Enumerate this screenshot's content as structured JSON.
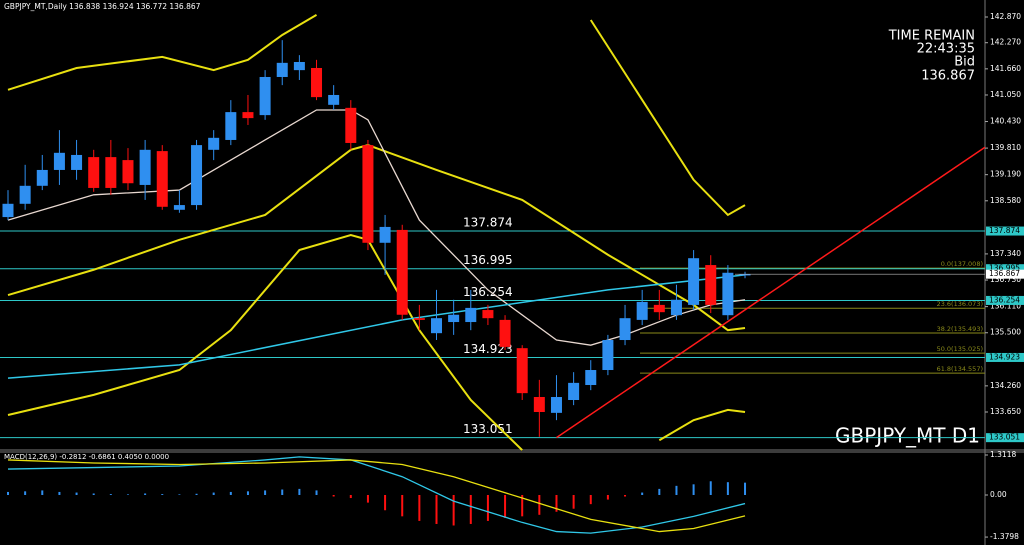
{
  "chart_data": {
    "type": "candlestick",
    "header": "GBPJPY_MT,Daily 136.838 136.924 136.772 136.867",
    "symbol_label": "GBPJPY_MT D1",
    "time_remain": {
      "title": "TIME REMAIN",
      "time": "22:43:35",
      "bid_label": "Bid",
      "bid": 136.867
    },
    "up_color": "#2f8ff0",
    "down_color": "#ff1010",
    "open": [
      138.2,
      138.51,
      138.93,
      139.3,
      139.3,
      139.6,
      139.6,
      139.53,
      138.95,
      139.74,
      138.37,
      138.48,
      139.77,
      140.0,
      140.65,
      140.58,
      141.47,
      141.63,
      141.68,
      140.82,
      140.75,
      139.88,
      137.6,
      137.9,
      135.84,
      135.49,
      135.75,
      135.75,
      136.03,
      135.8,
      135.14,
      134.0,
      133.63,
      133.93,
      134.28,
      134.63,
      135.33,
      135.8,
      136.15,
      135.91,
      136.15,
      137.08,
      135.91,
      136.838
    ],
    "high": [
      138.83,
      139.42,
      139.65,
      140.23,
      140.0,
      139.77,
      140.0,
      139.81,
      140.0,
      139.88,
      138.83,
      140.0,
      140.23,
      140.93,
      141.05,
      141.63,
      142.33,
      141.98,
      141.87,
      141.28,
      140.93,
      140.0,
      138.25,
      138.02,
      136.15,
      136.5,
      136.27,
      136.5,
      136.15,
      135.91,
      135.21,
      134.4,
      134.51,
      134.58,
      134.86,
      135.45,
      136.15,
      136.5,
      136.5,
      136.62,
      137.43,
      137.31,
      137.08,
      136.924
    ],
    "low": [
      138.13,
      138.37,
      138.83,
      138.95,
      139.07,
      138.79,
      138.72,
      138.83,
      138.6,
      138.37,
      138.3,
      138.37,
      139.53,
      139.88,
      140.35,
      140.47,
      141.28,
      141.4,
      140.93,
      140.7,
      139.77,
      137.43,
      136.85,
      135.8,
      135.56,
      135.33,
      135.45,
      135.56,
      135.68,
      135.1,
      133.93,
      133.07,
      133.46,
      133.81,
      134.16,
      134.51,
      135.21,
      135.68,
      135.8,
      135.8,
      136.03,
      135.96,
      135.8,
      136.772
    ],
    "close": [
      138.51,
      138.93,
      139.3,
      139.7,
      139.65,
      138.88,
      138.88,
      138.99,
      139.77,
      138.44,
      138.48,
      139.88,
      140.05,
      140.65,
      140.51,
      141.47,
      141.8,
      141.82,
      141.0,
      141.05,
      139.93,
      137.6,
      137.97,
      135.92,
      135.8,
      135.84,
      135.92,
      136.08,
      135.84,
      135.17,
      134.09,
      133.65,
      134.0,
      134.33,
      134.63,
      135.33,
      135.84,
      136.22,
      135.98,
      136.27,
      137.24,
      136.15,
      136.9,
      136.867
    ],
    "ylim": [
      132.763,
      143.267
    ],
    "yticks": [
      {
        "value": 142.87,
        "label": "142.870"
      },
      {
        "value": 142.27,
        "label": "142.270"
      },
      {
        "value": 141.66,
        "label": "141.660"
      },
      {
        "value": 141.05,
        "label": "141.050"
      },
      {
        "value": 140.43,
        "label": "140.430"
      },
      {
        "value": 139.81,
        "label": "139.810"
      },
      {
        "value": 139.19,
        "label": "139.190"
      },
      {
        "value": 138.58,
        "label": "138.580"
      },
      {
        "value": 137.34,
        "label": "137.340"
      },
      {
        "value": 136.73,
        "label": "136.730"
      },
      {
        "value": 136.11,
        "label": "136.110"
      },
      {
        "value": 135.5,
        "label": "135.500"
      },
      {
        "value": 134.26,
        "label": "134.260"
      },
      {
        "value": 133.65,
        "label": "133.650"
      }
    ],
    "levels": [
      137.874,
      136.995,
      136.254,
      134.923,
      133.051
    ],
    "level_color": "#2ec8c8",
    "fib_color": "#8a8a1a",
    "fib": [
      {
        "value": 137.008,
        "label": "0.0(137.008)"
      },
      {
        "value": 136.073,
        "label": "23.6(136.073)"
      },
      {
        "value": 135.493,
        "label": "38.2(135.493)"
      },
      {
        "value": 135.025,
        "label": "50.0(135.025)"
      },
      {
        "value": 134.557,
        "label": "61.8(134.557)"
      }
    ],
    "lines": [
      {
        "color": "#e8e010",
        "width": 2,
        "x": [
          0,
          4,
          9,
          12,
          14,
          16,
          18,
          19,
          34,
          40,
          42,
          43
        ],
        "values": [
          141.17,
          141.68,
          141.94,
          141.63,
          141.87,
          142.45,
          142.92,
          null,
          142.8,
          139.07,
          138.25,
          138.48
        ]
      },
      {
        "color": "#e8e010",
        "width": 2,
        "x": [
          0,
          5,
          10,
          15,
          20,
          21,
          25,
          30,
          35,
          40,
          42,
          43
        ],
        "values": [
          136.38,
          136.97,
          137.67,
          138.25,
          139.77,
          139.88,
          139.3,
          138.6,
          137.32,
          136.15,
          135.56,
          135.61
        ]
      },
      {
        "color": "#e8e010",
        "width": 2,
        "x": [
          0,
          5,
          10,
          13,
          17,
          20,
          21,
          24,
          27,
          30,
          31,
          38,
          40,
          42,
          43
        ],
        "values": [
          133.58,
          134.05,
          134.63,
          135.56,
          137.43,
          137.78,
          137.67,
          135.56,
          133.93,
          132.76,
          null,
          132.99,
          133.46,
          133.7,
          133.65
        ]
      },
      {
        "color": "#e8d8d0",
        "width": 1.3,
        "x": [
          0,
          5,
          10,
          15,
          18,
          20,
          21,
          24,
          28,
          32,
          34,
          36,
          39,
          41,
          43
        ],
        "values": [
          138.13,
          138.72,
          138.83,
          140.0,
          140.7,
          140.7,
          140.47,
          138.13,
          136.5,
          135.33,
          135.21,
          135.45,
          135.91,
          136.15,
          136.27
        ]
      },
      {
        "color": "#30c8e8",
        "width": 1.5,
        "x": [
          0,
          10,
          23,
          35,
          43
        ],
        "values": [
          134.44,
          134.75,
          135.8,
          136.5,
          136.85
        ]
      }
    ],
    "trendline": {
      "color": "#ff1a1a",
      "x": [
        32,
        57
      ],
      "values": [
        133.051,
        139.83
      ]
    },
    "macd": {
      "label": "MACD(12,26,9) -0.2812 -0.6861 0.4050 0.0000",
      "ylim": [
        -1.64,
        1.41
      ],
      "yticks": [
        1.3118,
        {
          "value": 0,
          "label": "0.00"
        },
        -1.3798
      ],
      "histogram": [
        0.1,
        0.12,
        0.15,
        0.1,
        0.08,
        0.05,
        0.03,
        0.02,
        0.05,
        0.03,
        0.02,
        0.04,
        0.08,
        0.1,
        0.12,
        0.15,
        0.18,
        0.2,
        0.15,
        -0.05,
        -0.1,
        -0.25,
        -0.5,
        -0.7,
        -0.85,
        -0.95,
        -1.0,
        -0.95,
        -0.85,
        -0.75,
        -0.7,
        -0.65,
        -0.55,
        -0.45,
        -0.3,
        -0.15,
        -0.05,
        0.08,
        0.2,
        0.3,
        0.35,
        0.45,
        0.42,
        0.405
      ],
      "lines": [
        {
          "color": "#30c8e8",
          "x": [
            0,
            5,
            10,
            15,
            17,
            20,
            23,
            26,
            30,
            32,
            34,
            37,
            40,
            43
          ],
          "values": [
            0.85,
            0.9,
            0.95,
            1.15,
            1.25,
            1.15,
            0.6,
            -0.2,
            -0.9,
            -1.2,
            -1.25,
            -1.05,
            -0.7,
            -0.2812
          ]
        },
        {
          "color": "#e8e010",
          "x": [
            0,
            5,
            10,
            15,
            20,
            23,
            26,
            30,
            34,
            37,
            38,
            40,
            43
          ],
          "values": [
            1.15,
            1.05,
            1.0,
            1.05,
            1.15,
            1.0,
            0.6,
            -0.1,
            -0.8,
            -1.1,
            -1.2,
            -1.1,
            -0.6861
          ]
        }
      ]
    }
  }
}
